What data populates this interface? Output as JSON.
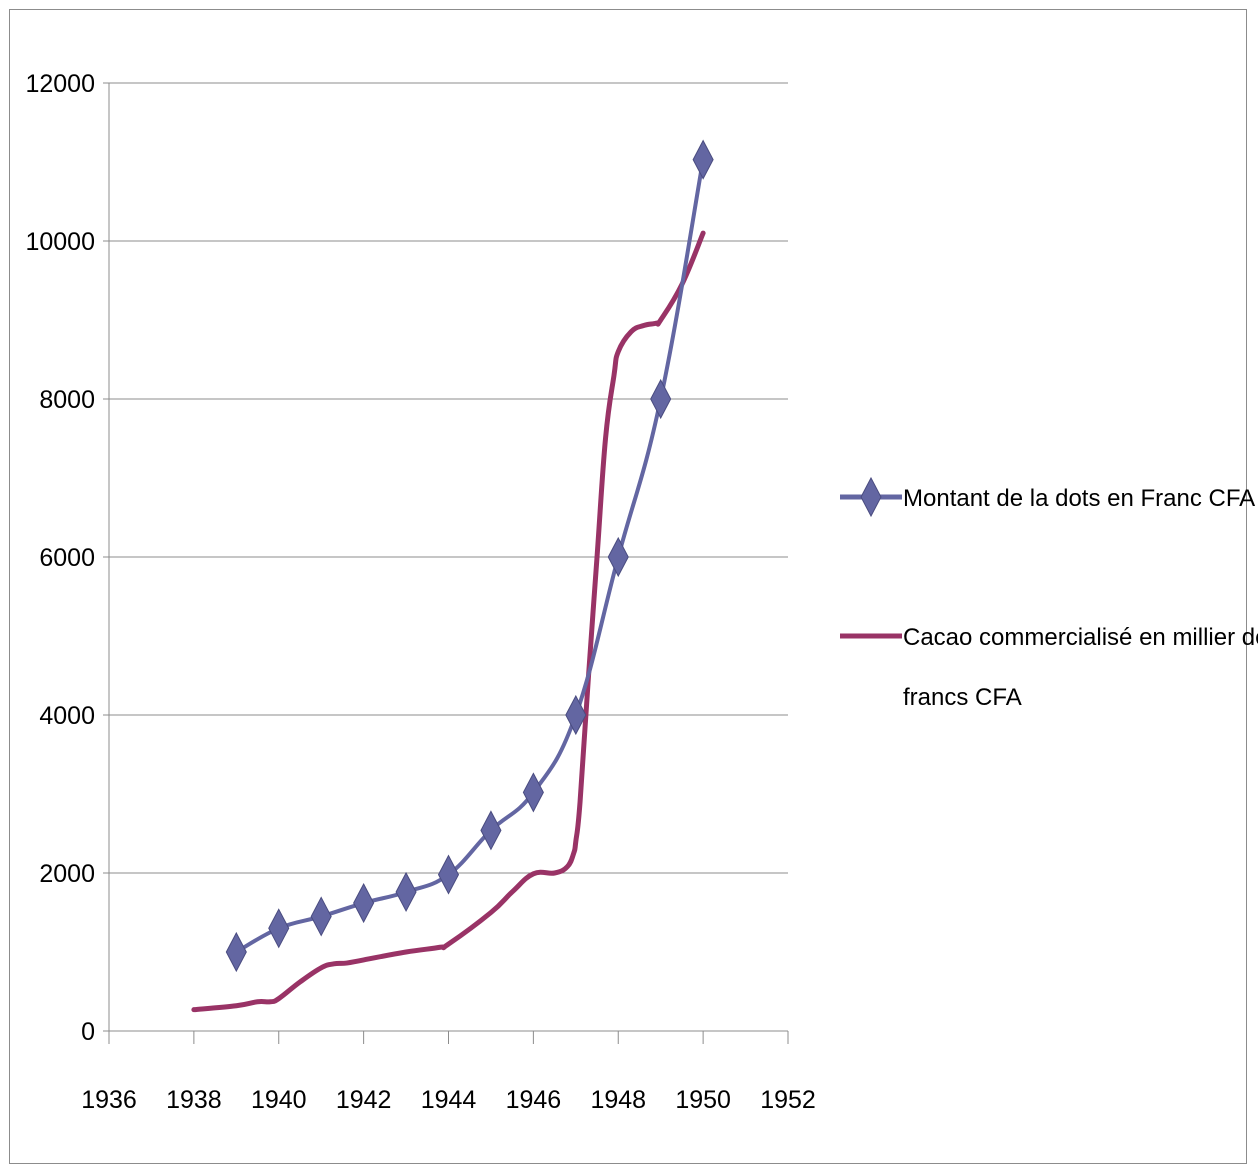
{
  "chart_data": {
    "type": "scatter",
    "title": "",
    "xlabel": "",
    "ylabel": "",
    "xlim": [
      1936,
      1952
    ],
    "ylim": [
      0,
      12000
    ],
    "x_ticks": [
      "1936",
      "1938",
      "1940",
      "1942",
      "1944",
      "1946",
      "1948",
      "1950",
      "1952"
    ],
    "y_ticks": [
      "0",
      "2000",
      "4000",
      "6000",
      "8000",
      "10000",
      "12000"
    ],
    "grid": {
      "horizontal": true,
      "vertical": false
    },
    "legend_position": "right",
    "series": [
      {
        "name": "Montant de la dots en Franc CFA",
        "color": "#6366a2",
        "marker": "diamond",
        "smooth": true,
        "points": [
          [
            1939,
            1000
          ],
          [
            1940,
            1300
          ],
          [
            1941,
            1450
          ],
          [
            1942,
            1620
          ],
          [
            1943,
            1760
          ],
          [
            1944,
            1980
          ],
          [
            1945,
            2540
          ],
          [
            1946,
            3020
          ],
          [
            1947,
            4000
          ],
          [
            1948,
            6000
          ],
          [
            1949,
            8000
          ],
          [
            1950,
            11030
          ]
        ]
      },
      {
        "name": "Cacao commercialisé en millier de francs CFA",
        "legend_lines": [
          "Cacao commercialisé en millier de",
          "francs CFA"
        ],
        "color": "#993366",
        "marker": "none",
        "smooth": true,
        "points": [
          [
            1938,
            270
          ],
          [
            1939,
            320
          ],
          [
            1939.5,
            370
          ],
          [
            1939.8,
            370
          ],
          [
            1940,
            410
          ],
          [
            1940.5,
            620
          ],
          [
            1941,
            800
          ],
          [
            1941.3,
            850
          ],
          [
            1941.6,
            860
          ],
          [
            1942,
            900
          ],
          [
            1943,
            1000
          ],
          [
            1943.8,
            1060
          ],
          [
            1944,
            1100
          ],
          [
            1945,
            1500
          ],
          [
            1945.5,
            1760
          ],
          [
            1946,
            1990
          ],
          [
            1946.5,
            2000
          ],
          [
            1946.8,
            2080
          ],
          [
            1946.95,
            2250
          ],
          [
            1947,
            2400
          ],
          [
            1947.1,
            2900
          ],
          [
            1947.3,
            4500
          ],
          [
            1947.5,
            6000
          ],
          [
            1947.7,
            7500
          ],
          [
            1947.9,
            8300
          ],
          [
            1948,
            8600
          ],
          [
            1948.3,
            8850
          ],
          [
            1948.6,
            8930
          ],
          [
            1948.9,
            8960
          ],
          [
            1949,
            9000
          ],
          [
            1949.5,
            9450
          ],
          [
            1950,
            10100
          ]
        ]
      }
    ]
  }
}
